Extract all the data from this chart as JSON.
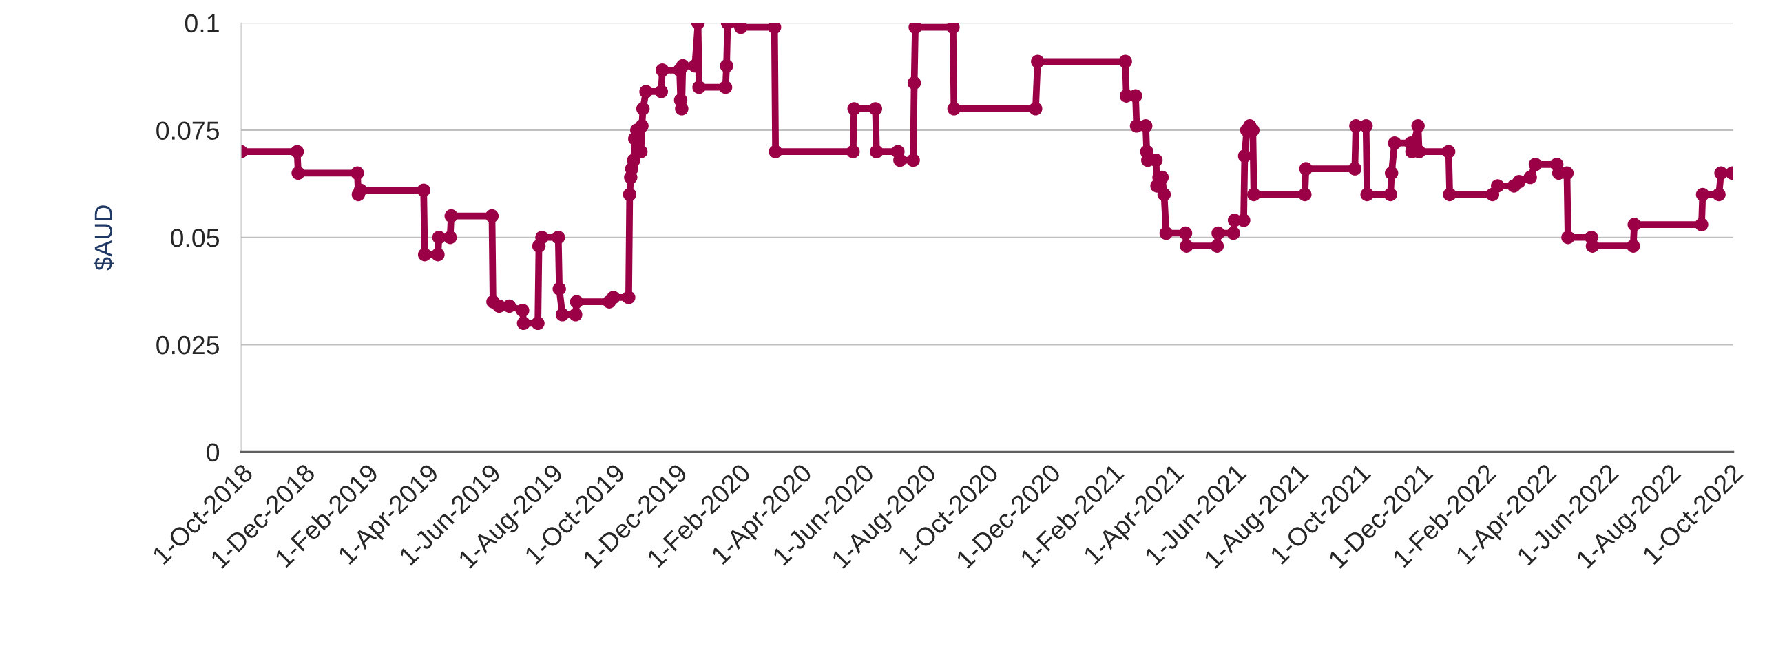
{
  "chart_data": {
    "type": "line",
    "ylabel": "$AUD",
    "marker": "circle",
    "line_style": "solid",
    "grid": "y",
    "legend": false,
    "xlim": [
      "2018-10-01",
      "2022-10-03"
    ],
    "ylim": [
      0,
      0.1
    ],
    "yticks": [
      0,
      0.025,
      0.05,
      0.075,
      0.1
    ],
    "xticks": [
      {
        "value": "2018-10-01",
        "label": "1-Oct-2018"
      },
      {
        "value": "2018-12-01",
        "label": "1-Dec-2018"
      },
      {
        "value": "2019-02-01",
        "label": "1-Feb-2019"
      },
      {
        "value": "2019-04-01",
        "label": "1-Apr-2019"
      },
      {
        "value": "2019-06-01",
        "label": "1-Jun-2019"
      },
      {
        "value": "2019-08-01",
        "label": "1-Aug-2019"
      },
      {
        "value": "2019-10-01",
        "label": "1-Oct-2019"
      },
      {
        "value": "2019-12-01",
        "label": "1-Dec-2019"
      },
      {
        "value": "2020-02-01",
        "label": "1-Feb-2020"
      },
      {
        "value": "2020-04-01",
        "label": "1-Apr-2020"
      },
      {
        "value": "2020-06-01",
        "label": "1-Jun-2020"
      },
      {
        "value": "2020-08-01",
        "label": "1-Aug-2020"
      },
      {
        "value": "2020-10-01",
        "label": "1-Oct-2020"
      },
      {
        "value": "2020-12-01",
        "label": "1-Dec-2020"
      },
      {
        "value": "2021-02-01",
        "label": "1-Feb-2021"
      },
      {
        "value": "2021-04-01",
        "label": "1-Apr-2021"
      },
      {
        "value": "2021-06-01",
        "label": "1-Jun-2021"
      },
      {
        "value": "2021-08-01",
        "label": "1-Aug-2021"
      },
      {
        "value": "2021-10-01",
        "label": "1-Oct-2021"
      },
      {
        "value": "2021-12-01",
        "label": "1-Dec-2021"
      },
      {
        "value": "2022-02-01",
        "label": "1-Feb-2022"
      },
      {
        "value": "2022-04-01",
        "label": "1-Apr-2022"
      },
      {
        "value": "2022-06-01",
        "label": "1-Jun-2022"
      },
      {
        "value": "2022-08-01",
        "label": "1-Aug-2022"
      },
      {
        "value": "2022-10-01",
        "label": "1-Oct-2022"
      }
    ],
    "series": [
      {
        "color": "#9b0046",
        "x": [
          "2018-10-01",
          "2018-11-25",
          "2018-11-26",
          "2019-01-23",
          "2019-01-24",
          "2019-01-26",
          "2019-03-29",
          "2019-03-30",
          "2019-04-12",
          "2019-04-13",
          "2019-04-24",
          "2019-04-25",
          "2019-06-04",
          "2019-06-05",
          "2019-06-11",
          "2019-06-21",
          "2019-07-04",
          "2019-07-05",
          "2019-07-19",
          "2019-07-20",
          "2019-07-23",
          "2019-08-08",
          "2019-08-09",
          "2019-08-12",
          "2019-08-25",
          "2019-08-26",
          "2019-09-27",
          "2019-10-01",
          "2019-10-16",
          "2019-10-17",
          "2019-10-18",
          "2019-10-19",
          "2019-10-21",
          "2019-10-22",
          "2019-10-24",
          "2019-10-28",
          "2019-10-29",
          "2019-10-30",
          "2019-11-02",
          "2019-11-17",
          "2019-11-18",
          "2019-12-05",
          "2019-12-06",
          "2019-12-07",
          "2019-12-08",
          "2019-12-20",
          "2019-12-23",
          "2019-12-24",
          "2020-01-19",
          "2020-01-20",
          "2020-01-21",
          "2020-02-01",
          "2020-02-03",
          "2020-03-07",
          "2020-03-08",
          "2020-05-23",
          "2020-05-24",
          "2020-06-14",
          "2020-06-15",
          "2020-07-06",
          "2020-07-08",
          "2020-07-21",
          "2020-07-22",
          "2020-07-23",
          "2020-08-29",
          "2020-08-30",
          "2020-11-18",
          "2020-11-20",
          "2021-02-14",
          "2021-02-15",
          "2021-02-24",
          "2021-02-25",
          "2021-03-06",
          "2021-03-07",
          "2021-03-08",
          "2021-03-16",
          "2021-03-17",
          "2021-03-19",
          "2021-03-22",
          "2021-03-24",
          "2021-03-26",
          "2021-04-14",
          "2021-04-15",
          "2021-05-15",
          "2021-05-16",
          "2021-05-31",
          "2021-06-01",
          "2021-06-10",
          "2021-06-11",
          "2021-06-13",
          "2021-06-16",
          "2021-06-19",
          "2021-06-20",
          "2021-08-09",
          "2021-08-10",
          "2021-09-27",
          "2021-09-28",
          "2021-10-08",
          "2021-10-09",
          "2021-11-01",
          "2021-11-02",
          "2021-11-05",
          "2021-11-21",
          "2021-11-22",
          "2021-11-28",
          "2021-11-29",
          "2021-12-28",
          "2021-12-29",
          "2022-02-09",
          "2022-02-14",
          "2022-03-02",
          "2022-03-07",
          "2022-03-18",
          "2022-03-23",
          "2022-04-13",
          "2022-04-15",
          "2022-04-23",
          "2022-04-24",
          "2022-05-17",
          "2022-05-18",
          "2022-06-27",
          "2022-06-28",
          "2022-09-02",
          "2022-09-03",
          "2022-09-19",
          "2022-09-21",
          "2022-10-02"
        ],
        "values": [
          0.07,
          0.07,
          0.065,
          0.065,
          0.06,
          0.061,
          0.061,
          0.046,
          0.046,
          0.05,
          0.05,
          0.055,
          0.055,
          0.035,
          0.034,
          0.034,
          0.033,
          0.03,
          0.03,
          0.048,
          0.05,
          0.05,
          0.038,
          0.032,
          0.032,
          0.035,
          0.035,
          0.036,
          0.036,
          0.06,
          0.064,
          0.066,
          0.068,
          0.073,
          0.075,
          0.07,
          0.076,
          0.08,
          0.084,
          0.084,
          0.089,
          0.089,
          0.082,
          0.08,
          0.09,
          0.09,
          0.1,
          0.085,
          0.085,
          0.09,
          0.1,
          0.1,
          0.099,
          0.099,
          0.07,
          0.07,
          0.08,
          0.08,
          0.07,
          0.07,
          0.068,
          0.068,
          0.086,
          0.099,
          0.099,
          0.08,
          0.08,
          0.091,
          0.091,
          0.083,
          0.083,
          0.076,
          0.076,
          0.07,
          0.068,
          0.068,
          0.062,
          0.064,
          0.064,
          0.06,
          0.051,
          0.051,
          0.048,
          0.048,
          0.051,
          0.051,
          0.054,
          0.054,
          0.069,
          0.075,
          0.076,
          0.075,
          0.06,
          0.06,
          0.066,
          0.066,
          0.076,
          0.076,
          0.06,
          0.06,
          0.065,
          0.072,
          0.072,
          0.07,
          0.076,
          0.07,
          0.07,
          0.06,
          0.06,
          0.062,
          0.062,
          0.063,
          0.064,
          0.067,
          0.067,
          0.065,
          0.065,
          0.05,
          0.05,
          0.048,
          0.048,
          0.053,
          0.053,
          0.06,
          0.06,
          0.065,
          0.065
        ]
      }
    ]
  }
}
